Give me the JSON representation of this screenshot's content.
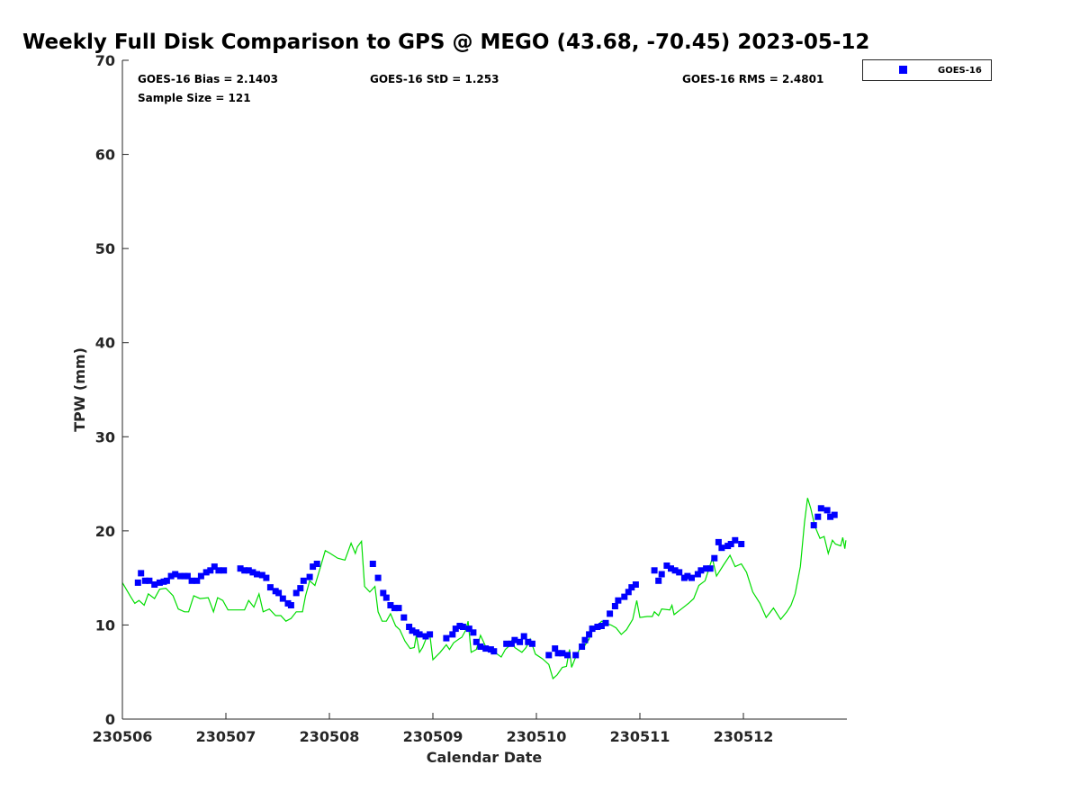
{
  "chart_data": {
    "type": "scatter",
    "title": "Weekly Full Disk Comparison to GPS @ MEGO (43.68, -70.45) 2023-05-12",
    "xlabel": "Calendar Date",
    "ylabel": "TPW (mm)",
    "xlim": [
      0,
      7
    ],
    "ylim": [
      0,
      70
    ],
    "x_units": "days since 230506",
    "xticks": [
      0,
      1,
      2,
      3,
      4,
      5,
      6
    ],
    "xtick_labels": [
      "230506",
      "230507",
      "230508",
      "230509",
      "230510",
      "230511",
      "230512"
    ],
    "yticks": [
      0,
      10,
      20,
      30,
      40,
      50,
      60,
      70
    ],
    "ytick_labels": [
      "0",
      "10",
      "20",
      "30",
      "40",
      "50",
      "60",
      "70"
    ],
    "grid": false,
    "legend": {
      "placement": "outside-top-right",
      "entries": [
        "GOES-16"
      ]
    },
    "stats": {
      "bias": "GOES-16 Bias = 2.1403",
      "std": "GOES-16 StD = 1.253",
      "rms": "GOES-16 RMS = 2.4801",
      "sample": "Sample Size = 121"
    },
    "colors": {
      "goes": "#0000ff",
      "gps": "#00dd00",
      "axis": "#262626"
    },
    "series": [
      {
        "name": "GOES-16",
        "kind": "scatter",
        "points": [
          [
            0.15,
            14.5
          ],
          [
            0.18,
            15.5
          ],
          [
            0.22,
            14.7
          ],
          [
            0.26,
            14.7
          ],
          [
            0.31,
            14.3
          ],
          [
            0.36,
            14.5
          ],
          [
            0.4,
            14.6
          ],
          [
            0.43,
            14.7
          ],
          [
            0.47,
            15.2
          ],
          [
            0.51,
            15.4
          ],
          [
            0.56,
            15.2
          ],
          [
            0.6,
            15.2
          ],
          [
            0.63,
            15.2
          ],
          [
            0.67,
            14.7
          ],
          [
            0.72,
            14.7
          ],
          [
            0.76,
            15.2
          ],
          [
            0.81,
            15.6
          ],
          [
            0.85,
            15.8
          ],
          [
            0.89,
            16.2
          ],
          [
            0.93,
            15.8
          ],
          [
            0.98,
            15.8
          ],
          [
            1.14,
            16.0
          ],
          [
            1.18,
            15.8
          ],
          [
            1.22,
            15.8
          ],
          [
            1.26,
            15.6
          ],
          [
            1.3,
            15.4
          ],
          [
            1.35,
            15.3
          ],
          [
            1.39,
            15.0
          ],
          [
            1.43,
            14.0
          ],
          [
            1.48,
            13.6
          ],
          [
            1.51,
            13.4
          ],
          [
            1.55,
            12.8
          ],
          [
            1.6,
            12.3
          ],
          [
            1.63,
            12.1
          ],
          [
            1.68,
            13.4
          ],
          [
            1.72,
            13.9
          ],
          [
            1.75,
            14.7
          ],
          [
            1.81,
            15.1
          ],
          [
            1.84,
            16.2
          ],
          [
            1.88,
            16.5
          ],
          [
            2.42,
            16.5
          ],
          [
            2.47,
            15.0
          ],
          [
            2.52,
            13.4
          ],
          [
            2.55,
            12.9
          ],
          [
            2.59,
            12.1
          ],
          [
            2.63,
            11.8
          ],
          [
            2.67,
            11.8
          ],
          [
            2.72,
            10.8
          ],
          [
            2.77,
            9.8
          ],
          [
            2.8,
            9.4
          ],
          [
            2.84,
            9.2
          ],
          [
            2.87,
            9.0
          ],
          [
            2.93,
            8.8
          ],
          [
            2.97,
            9.0
          ],
          [
            3.13,
            8.6
          ],
          [
            3.19,
            9.0
          ],
          [
            3.22,
            9.6
          ],
          [
            3.26,
            9.9
          ],
          [
            3.29,
            9.8
          ],
          [
            3.35,
            9.6
          ],
          [
            3.39,
            9.2
          ],
          [
            3.42,
            8.2
          ],
          [
            3.46,
            7.7
          ],
          [
            3.51,
            7.5
          ],
          [
            3.56,
            7.4
          ],
          [
            3.59,
            7.2
          ],
          [
            3.71,
            8.0
          ],
          [
            3.76,
            8.0
          ],
          [
            3.79,
            8.4
          ],
          [
            3.84,
            8.2
          ],
          [
            3.88,
            8.8
          ],
          [
            3.92,
            8.2
          ],
          [
            3.96,
            8.0
          ],
          [
            4.12,
            6.8
          ],
          [
            4.18,
            7.5
          ],
          [
            4.21,
            7.0
          ],
          [
            4.25,
            7.0
          ],
          [
            4.3,
            6.8
          ],
          [
            4.38,
            6.8
          ],
          [
            4.44,
            7.7
          ],
          [
            4.47,
            8.4
          ],
          [
            4.51,
            9.0
          ],
          [
            4.54,
            9.6
          ],
          [
            4.59,
            9.8
          ],
          [
            4.63,
            9.9
          ],
          [
            4.67,
            10.2
          ],
          [
            4.71,
            11.2
          ],
          [
            4.76,
            12.0
          ],
          [
            4.79,
            12.6
          ],
          [
            4.85,
            13.0
          ],
          [
            4.89,
            13.5
          ],
          [
            4.92,
            14.0
          ],
          [
            4.96,
            14.3
          ],
          [
            5.14,
            15.8
          ],
          [
            5.18,
            14.7
          ],
          [
            5.21,
            15.4
          ],
          [
            5.26,
            16.3
          ],
          [
            5.3,
            16.0
          ],
          [
            5.34,
            15.8
          ],
          [
            5.38,
            15.6
          ],
          [
            5.43,
            15.0
          ],
          [
            5.46,
            15.2
          ],
          [
            5.5,
            15.0
          ],
          [
            5.56,
            15.4
          ],
          [
            5.59,
            15.8
          ],
          [
            5.64,
            16.0
          ],
          [
            5.68,
            16.0
          ],
          [
            5.72,
            17.1
          ],
          [
            5.76,
            18.8
          ],
          [
            5.79,
            18.2
          ],
          [
            5.85,
            18.4
          ],
          [
            5.88,
            18.6
          ],
          [
            5.92,
            19.0
          ],
          [
            5.98,
            18.6
          ],
          [
            6.68,
            20.6
          ],
          [
            6.72,
            21.5
          ],
          [
            6.75,
            22.4
          ],
          [
            6.81,
            22.2
          ],
          [
            6.84,
            21.5
          ],
          [
            6.88,
            21.7
          ]
        ]
      },
      {
        "kind": "line",
        "points": [
          [
            0.0,
            14.5
          ],
          [
            0.08,
            13.0
          ],
          [
            0.12,
            12.3
          ],
          [
            0.16,
            12.6
          ],
          [
            0.21,
            12.1
          ],
          [
            0.25,
            13.3
          ],
          [
            0.31,
            12.8
          ],
          [
            0.36,
            13.8
          ],
          [
            0.42,
            13.9
          ],
          [
            0.49,
            13.1
          ],
          [
            0.54,
            11.7
          ],
          [
            0.6,
            11.4
          ],
          [
            0.64,
            11.4
          ],
          [
            0.69,
            13.1
          ],
          [
            0.75,
            12.8
          ],
          [
            0.83,
            12.9
          ],
          [
            0.88,
            11.4
          ],
          [
            0.92,
            12.9
          ],
          [
            0.97,
            12.6
          ],
          [
            1.02,
            11.6
          ],
          [
            1.09,
            11.6
          ],
          [
            1.18,
            11.6
          ],
          [
            1.22,
            12.6
          ],
          [
            1.27,
            11.9
          ],
          [
            1.32,
            13.3
          ],
          [
            1.36,
            11.4
          ],
          [
            1.42,
            11.7
          ],
          [
            1.48,
            11.0
          ],
          [
            1.53,
            11.0
          ],
          [
            1.58,
            10.4
          ],
          [
            1.63,
            10.7
          ],
          [
            1.68,
            11.4
          ],
          [
            1.74,
            11.4
          ],
          [
            1.77,
            13.1
          ],
          [
            1.81,
            14.7
          ],
          [
            1.86,
            14.2
          ],
          [
            1.91,
            16.0
          ],
          [
            1.96,
            17.9
          ],
          [
            2.01,
            17.6
          ],
          [
            2.08,
            17.1
          ],
          [
            2.15,
            16.9
          ],
          [
            2.21,
            18.7
          ],
          [
            2.25,
            17.6
          ],
          [
            2.27,
            18.3
          ],
          [
            2.31,
            18.9
          ],
          [
            2.34,
            14.1
          ],
          [
            2.39,
            13.5
          ],
          [
            2.44,
            14.1
          ],
          [
            2.47,
            11.4
          ],
          [
            2.51,
            10.4
          ],
          [
            2.55,
            10.4
          ],
          [
            2.59,
            11.2
          ],
          [
            2.64,
            9.9
          ],
          [
            2.68,
            9.5
          ],
          [
            2.73,
            8.3
          ],
          [
            2.78,
            7.5
          ],
          [
            2.82,
            7.6
          ],
          [
            2.84,
            8.9
          ],
          [
            2.87,
            7.1
          ],
          [
            2.9,
            7.6
          ],
          [
            2.94,
            8.7
          ],
          [
            2.97,
            9.0
          ],
          [
            3.0,
            6.3
          ],
          [
            3.07,
            7.1
          ],
          [
            3.13,
            7.9
          ],
          [
            3.16,
            7.4
          ],
          [
            3.2,
            8.1
          ],
          [
            3.25,
            8.5
          ],
          [
            3.28,
            8.7
          ],
          [
            3.32,
            9.5
          ],
          [
            3.34,
            10.4
          ],
          [
            3.37,
            7.1
          ],
          [
            3.42,
            7.4
          ],
          [
            3.46,
            8.9
          ],
          [
            3.51,
            7.7
          ],
          [
            3.56,
            7.4
          ],
          [
            3.61,
            7.0
          ],
          [
            3.66,
            6.6
          ],
          [
            3.7,
            7.4
          ],
          [
            3.73,
            7.7
          ],
          [
            3.77,
            8.5
          ],
          [
            3.79,
            7.6
          ],
          [
            3.86,
            7.1
          ],
          [
            3.9,
            7.6
          ],
          [
            3.94,
            8.5
          ],
          [
            3.99,
            6.9
          ],
          [
            4.06,
            6.4
          ],
          [
            4.12,
            5.8
          ],
          [
            4.16,
            4.3
          ],
          [
            4.2,
            4.7
          ],
          [
            4.25,
            5.5
          ],
          [
            4.29,
            5.6
          ],
          [
            4.32,
            7.4
          ],
          [
            4.34,
            5.5
          ],
          [
            4.38,
            6.6
          ],
          [
            4.43,
            7.7
          ],
          [
            4.46,
            7.7
          ],
          [
            4.51,
            8.5
          ],
          [
            4.53,
            9.9
          ],
          [
            4.58,
            9.8
          ],
          [
            4.63,
            10.4
          ],
          [
            4.69,
            10.1
          ],
          [
            4.72,
            10.0
          ],
          [
            4.77,
            9.7
          ],
          [
            4.82,
            9.0
          ],
          [
            4.87,
            9.5
          ],
          [
            4.93,
            10.6
          ],
          [
            4.97,
            12.6
          ],
          [
            5.0,
            10.8
          ],
          [
            5.07,
            10.9
          ],
          [
            5.12,
            10.9
          ],
          [
            5.14,
            11.4
          ],
          [
            5.18,
            11.0
          ],
          [
            5.21,
            11.7
          ],
          [
            5.29,
            11.6
          ],
          [
            5.31,
            12.1
          ],
          [
            5.33,
            11.1
          ],
          [
            5.4,
            11.7
          ],
          [
            5.47,
            12.3
          ],
          [
            5.52,
            12.8
          ],
          [
            5.57,
            14.2
          ],
          [
            5.63,
            14.7
          ],
          [
            5.7,
            17.1
          ],
          [
            5.74,
            15.2
          ],
          [
            5.81,
            16.4
          ],
          [
            5.87,
            17.4
          ],
          [
            5.92,
            16.2
          ],
          [
            5.98,
            16.5
          ],
          [
            6.03,
            15.6
          ],
          [
            6.09,
            13.5
          ],
          [
            6.16,
            12.3
          ],
          [
            6.22,
            10.8
          ],
          [
            6.29,
            11.8
          ],
          [
            6.36,
            10.6
          ],
          [
            6.42,
            11.4
          ],
          [
            6.46,
            12.1
          ],
          [
            6.5,
            13.3
          ],
          [
            6.55,
            16.2
          ],
          [
            6.59,
            20.9
          ],
          [
            6.62,
            23.5
          ],
          [
            6.65,
            22.4
          ],
          [
            6.69,
            20.5
          ],
          [
            6.74,
            19.2
          ],
          [
            6.78,
            19.4
          ],
          [
            6.82,
            17.6
          ],
          [
            6.86,
            19.0
          ],
          [
            6.89,
            18.6
          ],
          [
            6.94,
            18.4
          ],
          [
            6.96,
            19.3
          ],
          [
            6.98,
            18.1
          ],
          [
            6.99,
            19.0
          ]
        ]
      }
    ]
  }
}
